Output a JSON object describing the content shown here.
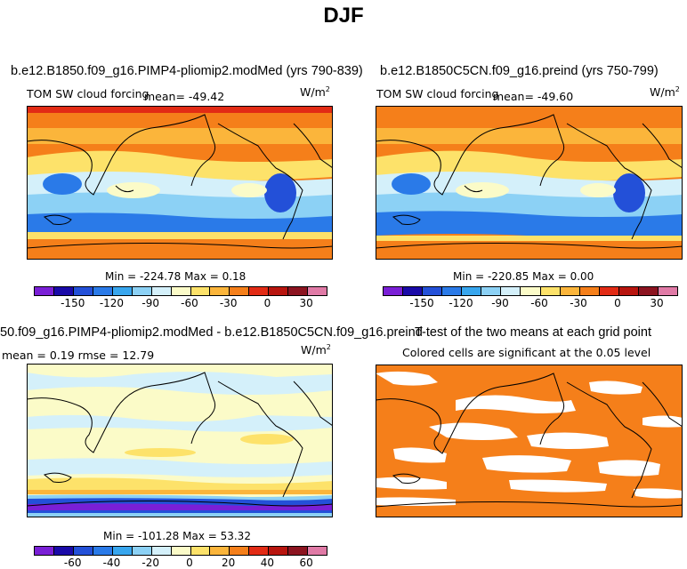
{
  "title": "DJF",
  "panel1": {
    "case": "b.e12.B1850.f09_g16.PIMP4-pliomip2.modMed (yrs 790-839)",
    "var": "TOM SW cloud forcing",
    "mean": "mean= -49.42",
    "units": "W/m",
    "units_exp": "2",
    "minmax": "Min = -224.78 Max =   0.18"
  },
  "panel2": {
    "case": "b.e12.B1850C5CN.f09_g16.preind (yrs 750-799)",
    "var": "TOM SW cloud forcing",
    "mean": "mean= -49.60",
    "units": "W/m",
    "units_exp": "2",
    "minmax": "Min = -220.85 Max =   0.00"
  },
  "panel3": {
    "case": "50.f09_g16.PIMP4-pliomip2.modMed - b.e12.B1850C5CN.f09_g16.preind",
    "stats": "mean =   0.19    rmse =  12.79",
    "units": "W/m",
    "units_exp": "2",
    "minmax": "Min = -101.28 Max =  53.32"
  },
  "panel4": {
    "title": "T-test of the two means at each grid point",
    "subtitle": "Colored cells are significant at the 0.05 level"
  },
  "colorbar_top": {
    "colors": [
      "#7a1fd6",
      "#1a0aa8",
      "#2350d8",
      "#2a7ae8",
      "#38a6ee",
      "#8cd1f5",
      "#d4f0fa",
      "#fbfbc8",
      "#fde26a",
      "#fbb53b",
      "#f57f1a",
      "#e22b15",
      "#b8150f",
      "#8c1420",
      "#e07aa6"
    ],
    "labels": [
      "-150",
      "-120",
      "-90",
      "-60",
      "-30",
      "0",
      "30"
    ]
  },
  "colorbar_diff": {
    "colors": [
      "#7a1fd6",
      "#1a0aa8",
      "#2350d8",
      "#2a7ae8",
      "#38a6ee",
      "#8cd1f5",
      "#d4f0fa",
      "#fbfbc8",
      "#fde26a",
      "#fbb53b",
      "#f57f1a",
      "#e22b15",
      "#b8150f",
      "#8c1420",
      "#e07aa6"
    ],
    "labels": [
      "-60",
      "-40",
      "-20",
      "0",
      "20",
      "40",
      "60"
    ]
  },
  "colors": {
    "orange": "#f57f1a",
    "mid_orange": "#fbb53b",
    "yellow": "#fde26a",
    "pale_yellow": "#fbfbc8",
    "pale_blue": "#d4f0fa",
    "light_blue": "#8cd1f5",
    "blue": "#2a7ae8",
    "dark_blue": "#2350d8",
    "red": "#e22b15",
    "land": "#000000"
  }
}
